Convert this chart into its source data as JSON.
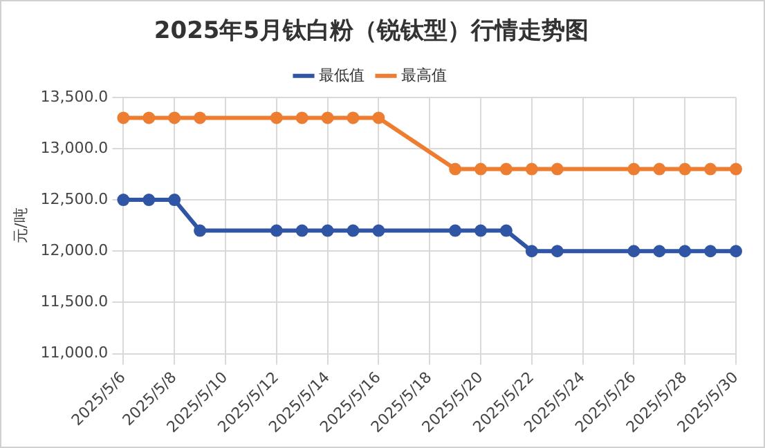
{
  "chart_data": {
    "type": "line",
    "title": "2025年5月钛白粉（锐钛型）行情走势图",
    "ylabel": "元/吨",
    "x": [
      "2025-05-06",
      "2025-05-07",
      "2025-05-08",
      "2025-05-09",
      "2025-05-12",
      "2025-05-13",
      "2025-05-14",
      "2025-05-15",
      "2025-05-16",
      "2025-05-19",
      "2025-05-20",
      "2025-05-21",
      "2025-05-22",
      "2025-05-23",
      "2025-05-26",
      "2025-05-27",
      "2025-05-28",
      "2025-05-29",
      "2025-05-30"
    ],
    "series": [
      {
        "name": "最低值",
        "color": "#2f55a4",
        "values": [
          12500,
          12500,
          12500,
          12200,
          12200,
          12200,
          12200,
          12200,
          12200,
          12200,
          12200,
          12200,
          12000,
          12000,
          12000,
          12000,
          12000,
          12000,
          12000
        ]
      },
      {
        "name": "最高值",
        "color": "#ed7d31",
        "values": [
          13300,
          13300,
          13300,
          13300,
          13300,
          13300,
          13300,
          13300,
          13300,
          12800,
          12800,
          12800,
          12800,
          12800,
          12800,
          12800,
          12800,
          12800,
          12800
        ]
      }
    ],
    "xlim": [
      "2025-05-06",
      "2025-05-30"
    ],
    "xticks": [
      {
        "value": "2025-05-06",
        "label": "2025/5/6"
      },
      {
        "value": "2025-05-08",
        "label": "2025/5/8"
      },
      {
        "value": "2025-05-10",
        "label": "2025/5/10"
      },
      {
        "value": "2025-05-12",
        "label": "2025/5/12"
      },
      {
        "value": "2025-05-14",
        "label": "2025/5/14"
      },
      {
        "value": "2025-05-16",
        "label": "2025/5/16"
      },
      {
        "value": "2025-05-18",
        "label": "2025/5/18"
      },
      {
        "value": "2025-05-20",
        "label": "2025/5/20"
      },
      {
        "value": "2025-05-22",
        "label": "2025/5/22"
      },
      {
        "value": "2025-05-24",
        "label": "2025/5/24"
      },
      {
        "value": "2025-05-26",
        "label": "2025/5/26"
      },
      {
        "value": "2025-05-28",
        "label": "2025/5/28"
      },
      {
        "value": "2025-05-30",
        "label": "2025/5/30"
      }
    ],
    "ylim": [
      11000,
      13500
    ],
    "yticks": [
      {
        "value": 11000,
        "label": "11,000.0"
      },
      {
        "value": 11500,
        "label": "11,500.0"
      },
      {
        "value": 12000,
        "label": "12,000.0"
      },
      {
        "value": 12500,
        "label": "12,500.0"
      },
      {
        "value": 13000,
        "label": "13,000.0"
      },
      {
        "value": 13500,
        "label": "13,500.0"
      }
    ],
    "grid": true,
    "legend": "top",
    "marker": "circle",
    "line_style": "solid"
  }
}
